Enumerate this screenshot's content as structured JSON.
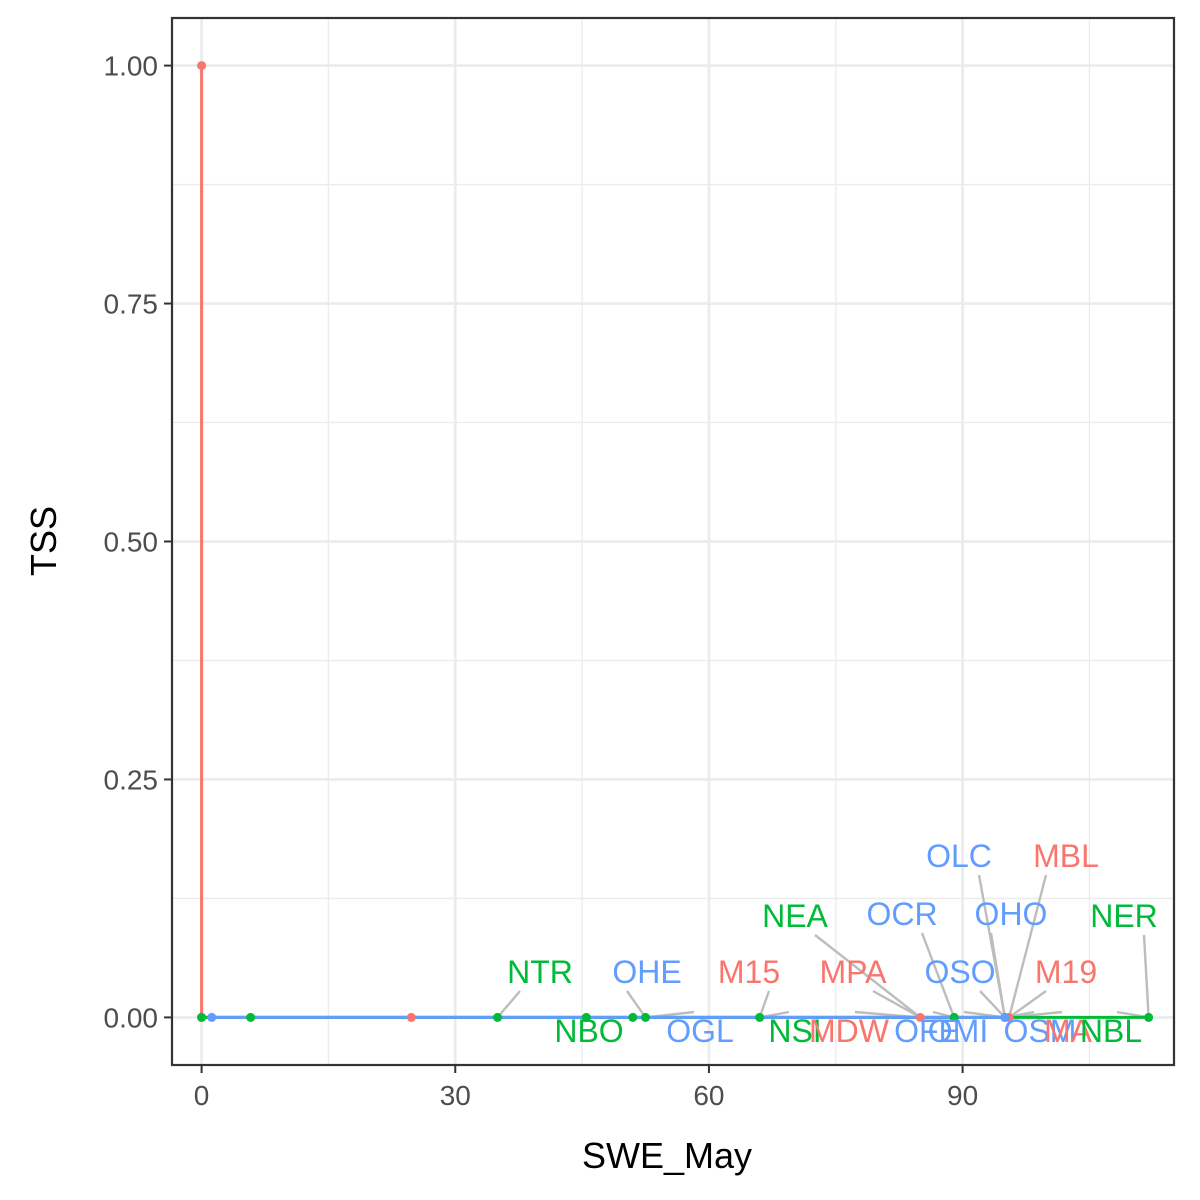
{
  "chart_data": {
    "type": "line",
    "xlabel": "SWE_May",
    "ylabel": "TSS",
    "xlim": [
      -3.5,
      115
    ],
    "ylim": [
      -0.05,
      1.05
    ],
    "x_ticks": [
      0,
      30,
      60,
      90
    ],
    "x_tick_labels": [
      "0",
      "30",
      "60",
      "90"
    ],
    "y_ticks": [
      0,
      0.25,
      0.5,
      0.75,
      1.0
    ],
    "y_tick_labels": [
      "0.00",
      "0.25",
      "0.50",
      "0.75",
      "1.00"
    ],
    "grid": true,
    "legend": "none",
    "series": [
      {
        "color": "#F8766D",
        "points": [
          {
            "x": 0,
            "y": 1.0
          },
          {
            "x": 0,
            "y": 0.0
          },
          {
            "x": 24.8,
            "y": 0.0
          },
          {
            "x": 85,
            "y": 0.0
          },
          {
            "x": 95.5,
            "y": 0.0
          }
        ]
      },
      {
        "color": "#00BA38",
        "points": [
          {
            "x": 0,
            "y": 0.0
          },
          {
            "x": 5.8,
            "y": 0.0
          },
          {
            "x": 35,
            "y": 0.0
          },
          {
            "x": 45.5,
            "y": 0.0
          },
          {
            "x": 51,
            "y": 0.0
          },
          {
            "x": 52.5,
            "y": 0.0
          },
          {
            "x": 66,
            "y": 0.0
          },
          {
            "x": 89,
            "y": 0.0
          },
          {
            "x": 95,
            "y": 0.0
          },
          {
            "x": 112,
            "y": 0.0
          }
        ]
      },
      {
        "color": "#619CFF",
        "points": [
          {
            "x": 1.2,
            "y": 0.0
          },
          {
            "x": 95,
            "y": 0.0
          }
        ]
      }
    ],
    "annotations": [
      {
        "text": "NTR",
        "color": "#00BA38",
        "x": 35,
        "y": 0.0
      },
      {
        "text": "OHE",
        "color": "#619CFF",
        "x": 52.5,
        "y": 0.0
      },
      {
        "text": "M15",
        "color": "#F8766D",
        "x": 66,
        "y": 0.0
      },
      {
        "text": "MPA",
        "color": "#F8766D",
        "x": 85,
        "y": 0.0
      },
      {
        "text": "NEA",
        "color": "#00BA38",
        "x": 85,
        "y": 0.0
      },
      {
        "text": "OCR",
        "color": "#619CFF",
        "x": 89,
        "y": 0.0
      },
      {
        "text": "OSO",
        "color": "#619CFF",
        "x": 95,
        "y": 0.0
      },
      {
        "text": "OLC",
        "color": "#619CFF",
        "x": 95,
        "y": 0.0
      },
      {
        "text": "OHO",
        "color": "#619CFF",
        "x": 95,
        "y": 0.0
      },
      {
        "text": "MBL",
        "color": "#F8766D",
        "x": 95.5,
        "y": 0.0
      },
      {
        "text": "M19",
        "color": "#F8766D",
        "x": 95.5,
        "y": 0.0
      },
      {
        "text": "NER",
        "color": "#00BA38",
        "x": 112,
        "y": 0.0
      },
      {
        "text": "NBO",
        "color": "#00BA38",
        "x": 45.5,
        "y": 0.0
      },
      {
        "text": "OGL",
        "color": "#619CFF",
        "x": 52.5,
        "y": 0.0
      },
      {
        "text": "NSI",
        "color": "#00BA38",
        "x": 66,
        "y": 0.0
      },
      {
        "text": "MDW",
        "color": "#F8766D",
        "x": 85,
        "y": 0.0
      },
      {
        "text": "OFE",
        "color": "#619CFF",
        "x": 89,
        "y": 0.0
      },
      {
        "text": "OMI",
        "color": "#619CFF",
        "x": 95,
        "y": 0.0
      },
      {
        "text": "OSM",
        "color": "#619CFF",
        "x": 95,
        "y": 0.0
      },
      {
        "text": "MA",
        "color": "#F8766D",
        "x": 95.5,
        "y": 0.0
      },
      {
        "text": "NBL",
        "color": "#00BA38",
        "x": 112,
        "y": 0.0
      }
    ]
  }
}
